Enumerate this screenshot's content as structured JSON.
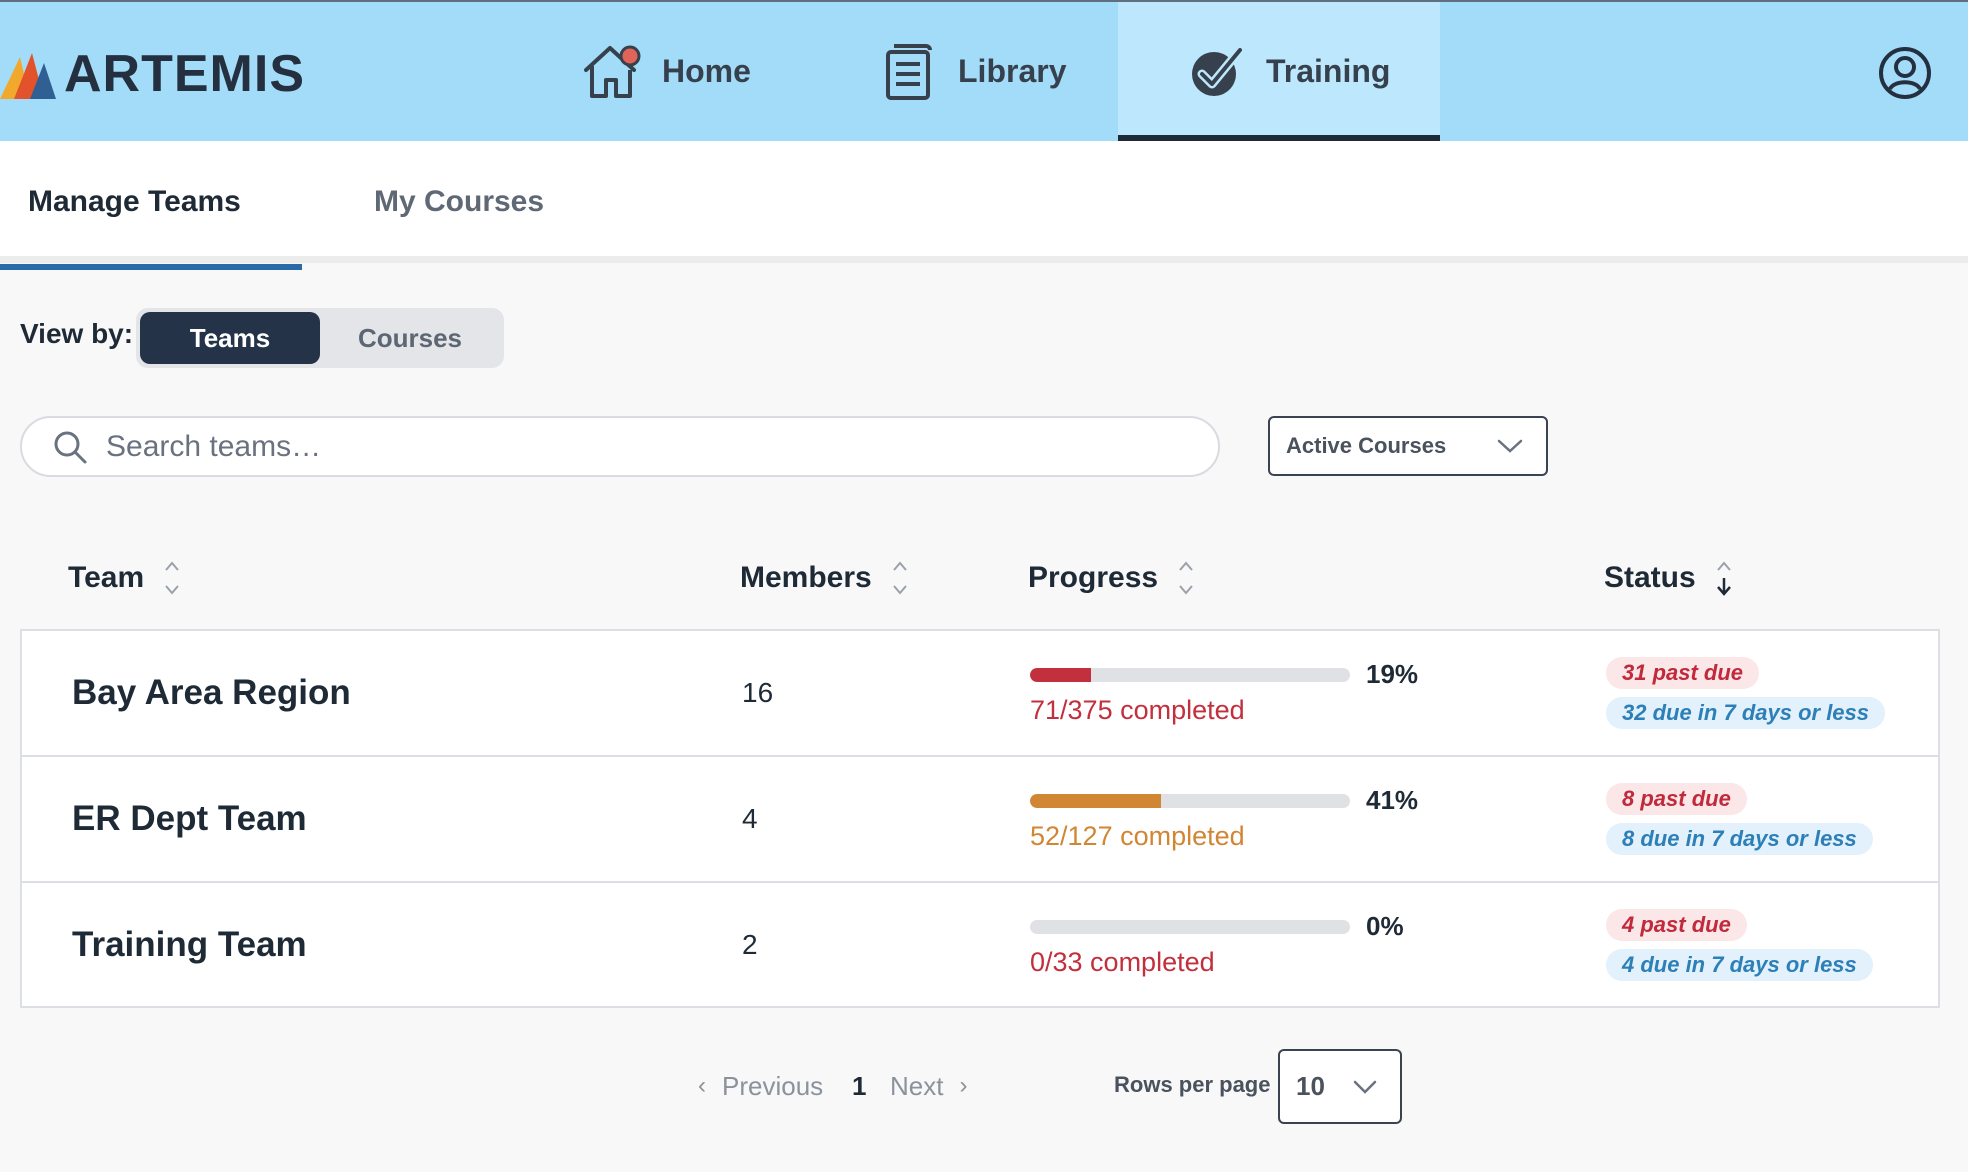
{
  "app": {
    "brand": "ARTEMIS",
    "nav": [
      {
        "label": "Home",
        "icon": "home-notification-icon"
      },
      {
        "label": "Library",
        "icon": "library-icon"
      },
      {
        "label": "Training",
        "icon": "check-circle-icon",
        "active": true
      }
    ],
    "user_icon": "user-account-icon"
  },
  "subtabs": [
    {
      "label": "Manage Teams",
      "active": true
    },
    {
      "label": "My Courses",
      "active": false
    }
  ],
  "view_by": {
    "label": "View by:",
    "options": [
      "Teams",
      "Courses"
    ],
    "selected": "Teams"
  },
  "search": {
    "placeholder": "Search teams…",
    "value": ""
  },
  "filter": {
    "selected": "Active Courses"
  },
  "table": {
    "columns": [
      "Team",
      "Members",
      "Progress",
      "Status"
    ],
    "rows": [
      {
        "team": "Bay Area Region",
        "members": "16",
        "progress_pct": 19,
        "progress_label": "19%",
        "completed": "71/375 completed",
        "past_due": "31 past due",
        "due_soon": "32 due in 7 days or less",
        "color": "#c22f3d"
      },
      {
        "team": "ER Dept Team",
        "members": "4",
        "progress_pct": 41,
        "progress_label": "41%",
        "completed": "52/127 completed",
        "past_due": "8 past due",
        "due_soon": "8 due in 7 days or less",
        "color": "#d18634"
      },
      {
        "team": "Training Team",
        "members": "2",
        "progress_pct": 0,
        "progress_label": "0%",
        "completed": "0/33 completed",
        "past_due": "4 past due",
        "due_soon": "4 due in 7 days or less",
        "color": "#c22f3d"
      }
    ]
  },
  "pagination": {
    "previous": "Previous",
    "page": "1",
    "next": "Next",
    "rows_per_page_label": "Rows per page",
    "rows_per_page": "10"
  },
  "colors": {
    "topbar": "#a3dcf9",
    "active_nav": "#bde7fc",
    "toggle_active": "#243348",
    "past_due": "#c02a3b",
    "due_soon": "#2d7fb8"
  }
}
